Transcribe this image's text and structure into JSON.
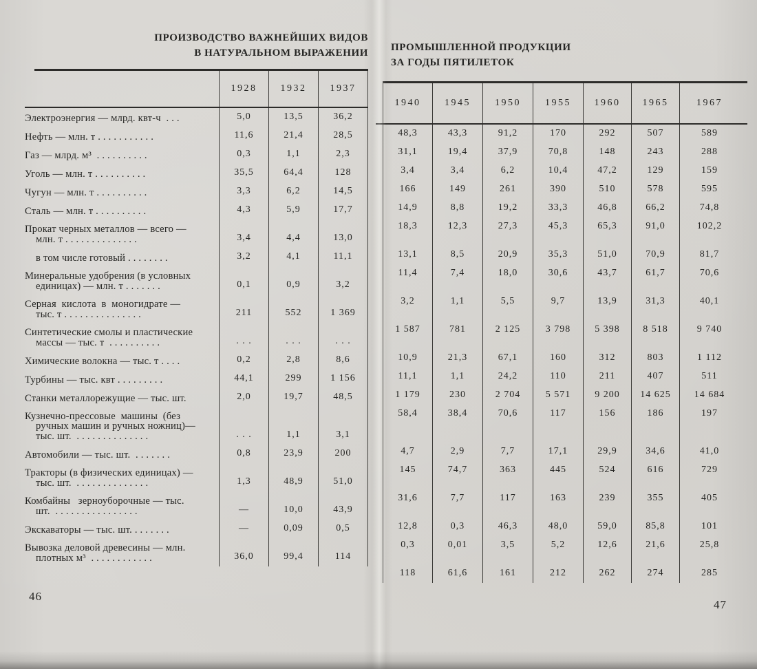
{
  "page_left": {
    "title_line1": "ПРОИЗВОДСТВО ВАЖНЕЙШИХ ВИДОВ",
    "title_line2": "В НАТУРАЛЬНОМ ВЫРАЖЕНИИ",
    "years": [
      "1928",
      "1932",
      "1937"
    ],
    "page_number": "46"
  },
  "page_right": {
    "title_line1": "ПРОМЫШЛЕННОЙ ПРОДУКЦИИ",
    "title_line2": "ЗА ГОДЫ ПЯТИЛЕТОК",
    "years": [
      "1940",
      "1945",
      "1950",
      "1955",
      "1960",
      "1965",
      "1967"
    ],
    "page_number": "47"
  },
  "rows": [
    {
      "label": "Электроэнергия — млрд. квт-ч  . . .",
      "left": [
        "5,0",
        "13,5",
        "36,2"
      ],
      "right": [
        "48,3",
        "43,3",
        "91,2",
        "170",
        "292",
        "507",
        "589"
      ]
    },
    {
      "label": "Нефть — млн. т . . . . . . . . . . .",
      "left": [
        "11,6",
        "21,4",
        "28,5"
      ],
      "right": [
        "31,1",
        "19,4",
        "37,9",
        "70,8",
        "148",
        "243",
        "288"
      ]
    },
    {
      "label": "Газ — млрд. м³  . . . . . . . . . .",
      "left": [
        "0,3",
        "1,1",
        "2,3"
      ],
      "right": [
        "3,4",
        "3,4",
        "6,2",
        "10,4",
        "47,2",
        "129",
        "159"
      ]
    },
    {
      "label": "Уголь — млн. т . . . . . . . . . .",
      "left": [
        "35,5",
        "64,4",
        "128"
      ],
      "right": [
        "166",
        "149",
        "261",
        "390",
        "510",
        "578",
        "595"
      ]
    },
    {
      "label": "Чугун — млн. т . . . . . . . . . .",
      "left": [
        "3,3",
        "6,2",
        "14,5"
      ],
      "right": [
        "14,9",
        "8,8",
        "19,2",
        "33,3",
        "46,8",
        "66,2",
        "74,8"
      ]
    },
    {
      "label": "Сталь — млн. т . . . . . . . . . .",
      "left": [
        "4,3",
        "5,9",
        "17,7"
      ],
      "right": [
        "18,3",
        "12,3",
        "27,3",
        "45,3",
        "65,3",
        "91,0",
        "102,2"
      ]
    },
    {
      "label": "Прокат черных металлов — всего —\nмлн. т . . . . . . . . . . . . . .",
      "left": [
        "3,4",
        "4,4",
        "13,0"
      ],
      "right": [
        "13,1",
        "8,5",
        "20,9",
        "35,3",
        "51,0",
        "70,9",
        "81,7"
      ]
    },
    {
      "label": "в том числе готовый . . . . . . . .",
      "sub": true,
      "left": [
        "3,2",
        "4,1",
        "11,1"
      ],
      "right": [
        "11,4",
        "7,4",
        "18,0",
        "30,6",
        "43,7",
        "61,7",
        "70,6"
      ]
    },
    {
      "label": "Минеральные удобрения (в условных\nединицах) — млн. т . . . . . . .",
      "left": [
        "0,1",
        "0,9",
        "3,2"
      ],
      "right": [
        "3,2",
        "1,1",
        "5,5",
        "9,7",
        "13,9",
        "31,3",
        "40,1"
      ]
    },
    {
      "label": "Серная  кислота  в  моногидрате —\nтыс. т . . . . . . . . . . . . . . .",
      "left": [
        "211",
        "552",
        "1 369"
      ],
      "right": [
        "1 587",
        "781",
        "2 125",
        "3 798",
        "5 398",
        "8 518",
        "9 740"
      ]
    },
    {
      "label": "Синтетические смолы и пластические\nмассы — тыс. т  . . . . . . . . . .",
      "left": [
        ". . .",
        ". . .",
        ". . ."
      ],
      "right": [
        "10,9",
        "21,3",
        "67,1",
        "160",
        "312",
        "803",
        "1 112"
      ]
    },
    {
      "label": "Химические волокна — тыс. т . . . .",
      "left": [
        "0,2",
        "2,8",
        "8,6"
      ],
      "right": [
        "11,1",
        "1,1",
        "24,2",
        "110",
        "211",
        "407",
        "511"
      ]
    },
    {
      "label": "Турбины — тыс. квт . . . . . . . . .",
      "left": [
        "44,1",
        "299",
        "1 156"
      ],
      "right": [
        "1 179",
        "230",
        "2 704",
        "5 571",
        "9 200",
        "14 625",
        "14 684"
      ]
    },
    {
      "label": "Станки металлорежущие — тыс. шт.",
      "left": [
        "2,0",
        "19,7",
        "48,5"
      ],
      "right": [
        "58,4",
        "38,4",
        "70,6",
        "117",
        "156",
        "186",
        "197"
      ]
    },
    {
      "label": "Кузнечно-прессовые  машины  (без\nручных машин и ручных ножниц)—\nтыс. шт.  . . . . . . . . . . . . . .",
      "left": [
        ". . .",
        "1,1",
        "3,1"
      ],
      "right": [
        "4,7",
        "2,9",
        "7,7",
        "17,1",
        "29,9",
        "34,6",
        "41,0"
      ]
    },
    {
      "label": "Автомобили — тыс. шт.  . . . . . . .",
      "left": [
        "0,8",
        "23,9",
        "200"
      ],
      "right": [
        "145",
        "74,7",
        "363",
        "445",
        "524",
        "616",
        "729"
      ]
    },
    {
      "label": "Тракторы (в физических единицах) —\nтыс. шт.  . . . . . . . . . . . . . .",
      "left": [
        "1,3",
        "48,9",
        "51,0"
      ],
      "right": [
        "31,6",
        "7,7",
        "117",
        "163",
        "239",
        "355",
        "405"
      ]
    },
    {
      "label": "Комбайны   зерноуборочные — тыс.\nшт.  . . . . . . . . . . . . . . . .",
      "left": [
        "—",
        "10,0",
        "43,9"
      ],
      "right": [
        "12,8",
        "0,3",
        "46,3",
        "48,0",
        "59,0",
        "85,8",
        "101"
      ]
    },
    {
      "label": "Экскаваторы — тыс. шт. . . . . . . .",
      "left": [
        "—",
        "0,09",
        "0,5"
      ],
      "right": [
        "0,3",
        "0,01",
        "3,5",
        "5,2",
        "12,6",
        "21,6",
        "25,8"
      ]
    },
    {
      "label": "Вывозка деловой древесины — млн.\nплотных м³  . . . . . . . . . . . .",
      "left": [
        "36,0",
        "99,4",
        "114"
      ],
      "right": [
        "118",
        "61,6",
        "161",
        "212",
        "262",
        "274",
        "285"
      ]
    }
  ]
}
